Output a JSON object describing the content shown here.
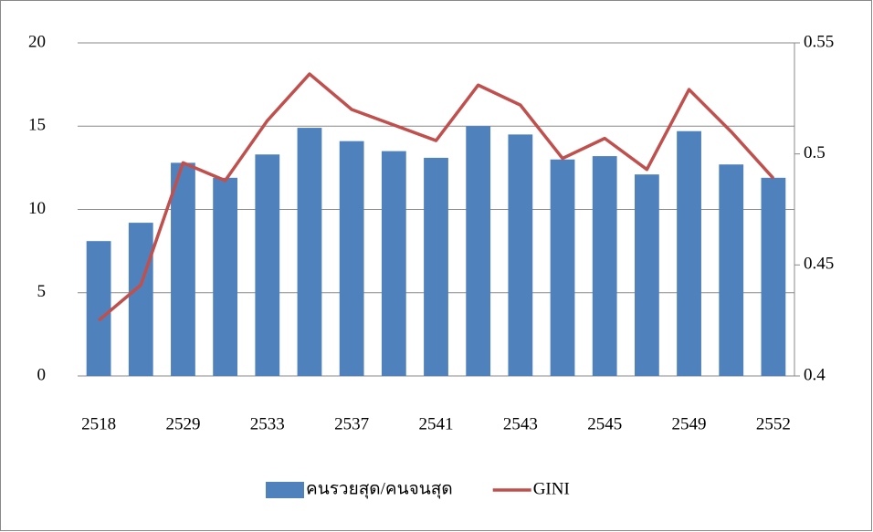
{
  "chart_data": {
    "type": "bar",
    "categories": [
      "2518",
      null,
      "2529",
      null,
      "2533",
      null,
      "2537",
      null,
      "2541",
      null,
      "2543",
      null,
      "2545",
      null,
      "2549",
      null,
      "2552"
    ],
    "series": [
      {
        "name": "คนรวยสุด/คนจนสุด",
        "type": "bar",
        "color": "#4f81bd",
        "values": [
          8.1,
          9.2,
          12.8,
          11.9,
          13.3,
          14.9,
          14.1,
          13.5,
          13.1,
          15.0,
          14.5,
          13.0,
          13.2,
          12.1,
          14.7,
          12.7,
          11.9
        ]
      },
      {
        "name": "GINI",
        "type": "line",
        "axis": "y2",
        "color": "#c0504d",
        "values": [
          0.425,
          0.441,
          0.496,
          0.488,
          0.515,
          0.536,
          0.52,
          0.513,
          0.506,
          0.531,
          0.522,
          0.498,
          0.507,
          0.493,
          0.529,
          0.51,
          0.489
        ]
      }
    ],
    "ylim": [
      0,
      20
    ],
    "yticks": [
      0,
      5,
      10,
      15,
      20
    ],
    "y2lim": [
      0.4,
      0.55
    ],
    "y2ticks": [
      0.4,
      0.45,
      0.5,
      0.55
    ],
    "grid": true,
    "legend": "bottom"
  }
}
